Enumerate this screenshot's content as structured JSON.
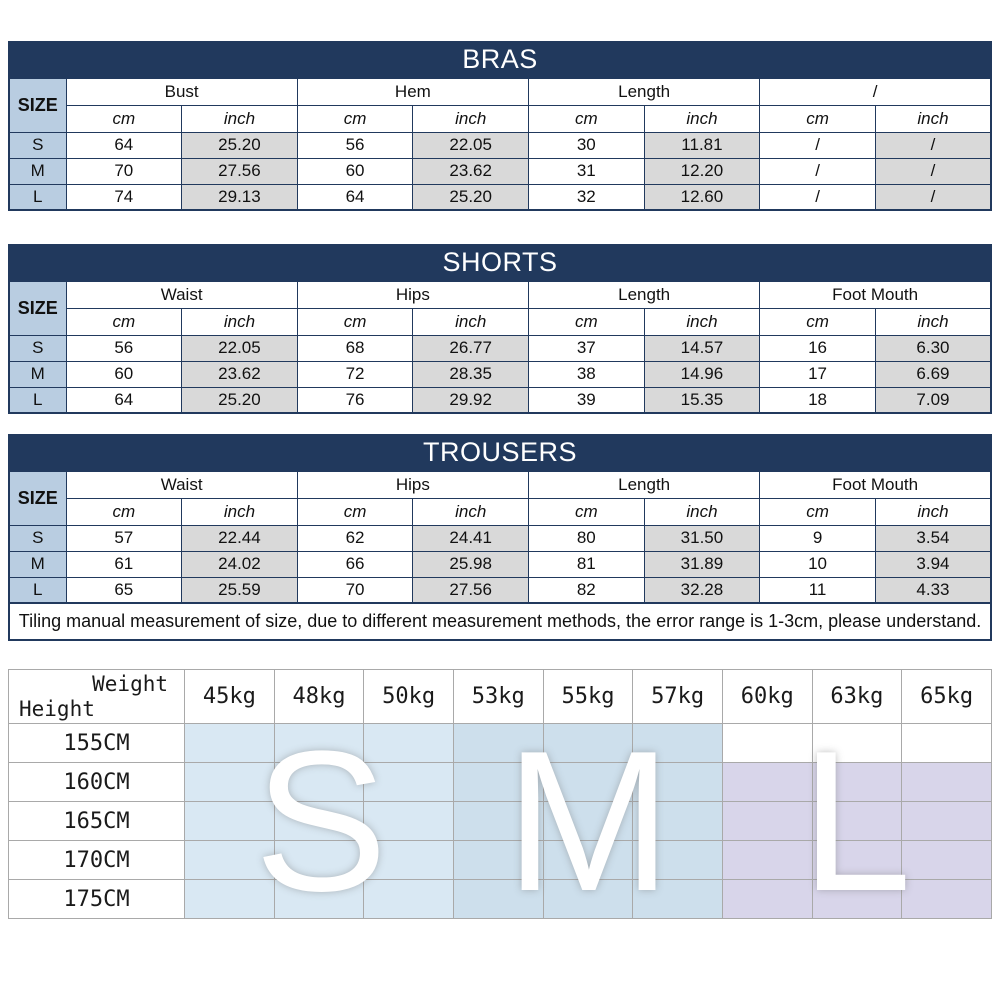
{
  "colors": {
    "navy": "#21395d",
    "size_col_bg": "#b9cde1",
    "inch_col_bg": "#d9d9d9",
    "grid_border": "#a9a9a9",
    "band_s": "#d9e8f3",
    "band_m": "#cddfec",
    "band_l": "#d8d5ea",
    "band_w": "#ffffff"
  },
  "units": {
    "cm": "cm",
    "inch": "inch"
  },
  "tables": [
    {
      "title": "BRAS",
      "size_label": "SIZE",
      "groups": [
        "Bust",
        "Hem",
        "Length",
        "/"
      ],
      "rows": [
        {
          "size": "S",
          "values": [
            [
              "64",
              "25.20"
            ],
            [
              "56",
              "22.05"
            ],
            [
              "30",
              "11.81"
            ],
            [
              "/",
              "/"
            ]
          ]
        },
        {
          "size": "M",
          "values": [
            [
              "70",
              "27.56"
            ],
            [
              "60",
              "23.62"
            ],
            [
              "31",
              "12.20"
            ],
            [
              "/",
              "/"
            ]
          ]
        },
        {
          "size": "L",
          "values": [
            [
              "74",
              "29.13"
            ],
            [
              "64",
              "25.20"
            ],
            [
              "32",
              "12.60"
            ],
            [
              "/",
              "/"
            ]
          ]
        }
      ]
    },
    {
      "title": "SHORTS",
      "size_label": "SIZE",
      "groups": [
        "Waist",
        "Hips",
        "Length",
        "Foot Mouth"
      ],
      "rows": [
        {
          "size": "S",
          "values": [
            [
              "56",
              "22.05"
            ],
            [
              "68",
              "26.77"
            ],
            [
              "37",
              "14.57"
            ],
            [
              "16",
              "6.30"
            ]
          ]
        },
        {
          "size": "M",
          "values": [
            [
              "60",
              "23.62"
            ],
            [
              "72",
              "28.35"
            ],
            [
              "38",
              "14.96"
            ],
            [
              "17",
              "6.69"
            ]
          ]
        },
        {
          "size": "L",
          "values": [
            [
              "64",
              "25.20"
            ],
            [
              "76",
              "29.92"
            ],
            [
              "39",
              "15.35"
            ],
            [
              "18",
              "7.09"
            ]
          ]
        }
      ]
    },
    {
      "title": "TROUSERS",
      "size_label": "SIZE",
      "groups": [
        "Waist",
        "Hips",
        "Length",
        "Foot Mouth"
      ],
      "rows": [
        {
          "size": "S",
          "values": [
            [
              "57",
              "22.44"
            ],
            [
              "62",
              "24.41"
            ],
            [
              "80",
              "31.50"
            ],
            [
              "9",
              "3.54"
            ]
          ]
        },
        {
          "size": "M",
          "values": [
            [
              "61",
              "24.02"
            ],
            [
              "66",
              "25.98"
            ],
            [
              "81",
              "31.89"
            ],
            [
              "10",
              "3.94"
            ]
          ]
        },
        {
          "size": "L",
          "values": [
            [
              "65",
              "25.59"
            ],
            [
              "70",
              "27.56"
            ],
            [
              "82",
              "32.28"
            ],
            [
              "11",
              "4.33"
            ]
          ]
        }
      ]
    }
  ],
  "note": "Tiling manual measurement of size, due to different measurement methods, the error range is 1-3cm, please understand.",
  "size_chart": {
    "weight_label": "Weight",
    "height_label": "Height",
    "weights": [
      "45kg",
      "48kg",
      "50kg",
      "53kg",
      "55kg",
      "57kg",
      "60kg",
      "63kg",
      "65kg"
    ],
    "heights": [
      "155CM",
      "160CM",
      "165CM",
      "170CM",
      "175CM"
    ],
    "overlay_letters": [
      "S",
      "M",
      "L"
    ],
    "cells": [
      [
        "s",
        "s",
        "s",
        "m",
        "m",
        "m",
        "w",
        "w",
        "w"
      ],
      [
        "s",
        "s",
        "s",
        "m",
        "m",
        "m",
        "l",
        "l",
        "l"
      ],
      [
        "s",
        "s",
        "s",
        "m",
        "m",
        "m",
        "l",
        "l",
        "l"
      ],
      [
        "s",
        "s",
        "s",
        "m",
        "m",
        "m",
        "l",
        "l",
        "l"
      ],
      [
        "s",
        "s",
        "s",
        "m",
        "m",
        "m",
        "l",
        "l",
        "l"
      ]
    ]
  }
}
